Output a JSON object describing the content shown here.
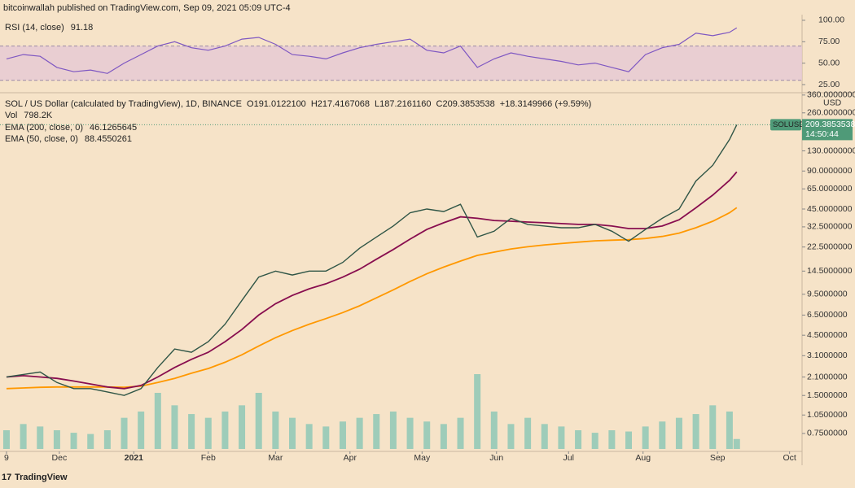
{
  "header": "bitcoinwallah published on TradingView.com, Sep 09, 2021 05:09 UTC-4",
  "footer": "TradingView",
  "chart_data": {
    "type": "line",
    "title": "SOL / US Dollar (calculated by TradingView), 1D, BINANCE",
    "ohlc": [
      "O191.0122100",
      "H217.4167068",
      "L187.2161160",
      "C209.3853538",
      "+18.3149966 (+9.59%)"
    ],
    "symbol": "SOLUSD",
    "countdown": "14:50:44",
    "currency": "USD",
    "log_scale": true,
    "color": "#2f5546",
    "x": [
      0,
      7,
      14,
      21,
      28,
      35,
      42,
      49,
      56,
      63,
      70,
      77,
      84,
      91,
      98,
      105,
      112,
      119,
      126,
      133,
      140,
      147,
      154,
      161,
      168,
      175,
      182,
      189,
      196,
      203,
      210,
      217,
      224,
      231,
      238,
      245,
      252,
      259,
      266,
      273,
      280,
      287,
      294,
      301,
      304
    ],
    "values": [
      2.1,
      2.2,
      2.3,
      1.9,
      1.7,
      1.7,
      1.6,
      1.5,
      1.7,
      2.5,
      3.5,
      3.3,
      4.0,
      5.5,
      8.5,
      13,
      14.5,
      13.5,
      14.5,
      14.5,
      17,
      22,
      27,
      33,
      42,
      45,
      43,
      49,
      27,
      30,
      38,
      34,
      33,
      32,
      32,
      34,
      30,
      25,
      31,
      38,
      45,
      75,
      100,
      160,
      209.3853538
    ],
    "xlim": [
      -2.7,
      331.2
    ],
    "xticks": [
      {
        "value": 0,
        "label": "9"
      },
      {
        "value": 22,
        "label": "Dec"
      },
      {
        "value": 53,
        "label": "2021"
      },
      {
        "value": 84,
        "label": "Feb"
      },
      {
        "value": 112,
        "label": "Mar"
      },
      {
        "value": 143,
        "label": "Apr"
      },
      {
        "value": 173,
        "label": "May"
      },
      {
        "value": 204,
        "label": "Jun"
      },
      {
        "value": 234,
        "label": "Jul"
      },
      {
        "value": 265,
        "label": "Aug"
      },
      {
        "value": 296,
        "label": "Sep"
      },
      {
        "value": 326,
        "label": "Oct"
      }
    ],
    "ylim": [
      0.42,
      370
    ],
    "yticks": [
      {
        "value": 360,
        "label": "360.0000000"
      },
      {
        "value": 260,
        "label": "260.0000000"
      },
      {
        "value": 130,
        "label": "130.0000000"
      },
      {
        "value": 90,
        "label": "90.0000000"
      },
      {
        "value": 65,
        "label": "65.0000000"
      },
      {
        "value": 45,
        "label": "45.0000000"
      },
      {
        "value": 32.5,
        "label": "32.5000000"
      },
      {
        "value": 22.5,
        "label": "22.5000000"
      },
      {
        "value": 14.5,
        "label": "14.5000000"
      },
      {
        "value": 9.5,
        "label": "9.5000000"
      },
      {
        "value": 6.5,
        "label": "6.5000000"
      },
      {
        "value": 4.5,
        "label": "4.5000000"
      },
      {
        "value": 3.1,
        "label": "3.1000000"
      },
      {
        "value": 2.1,
        "label": "2.1000000"
      },
      {
        "value": 1.5,
        "label": "1.5000000"
      },
      {
        "value": 1.05,
        "label": "1.0500000"
      },
      {
        "value": 0.75,
        "label": "0.7500000"
      }
    ],
    "series": [
      {
        "name": "EMA (200, close, 0)",
        "color": "#ff9800",
        "values": [
          1.7,
          1.72,
          1.74,
          1.75,
          1.75,
          1.75,
          1.75,
          1.74,
          1.78,
          1.9,
          2.05,
          2.25,
          2.45,
          2.75,
          3.15,
          3.7,
          4.3,
          4.9,
          5.5,
          6.1,
          6.8,
          7.7,
          8.9,
          10.3,
          12,
          13.8,
          15.6,
          17.4,
          19.3,
          20.5,
          21.7,
          22.6,
          23.4,
          24,
          24.6,
          25.2,
          25.5,
          25.7,
          26.3,
          27.3,
          29,
          32,
          36,
          42,
          46.1265645
        ]
      },
      {
        "name": "EMA (50, close, 0)",
        "color": "#880e4f",
        "values": [
          2.1,
          2.15,
          2.1,
          2.05,
          1.95,
          1.85,
          1.75,
          1.7,
          1.8,
          2.1,
          2.5,
          2.9,
          3.3,
          4.0,
          5.0,
          6.5,
          8,
          9.3,
          10.5,
          11.5,
          13,
          15,
          18,
          21.5,
          26,
          31,
          35,
          39,
          38,
          36.5,
          36,
          35.5,
          35,
          34.5,
          34,
          34,
          33,
          31.5,
          31.5,
          33,
          37,
          46,
          58,
          76,
          88.4550261
        ]
      },
      {
        "name": "Vol",
        "color": "#8ec8b6",
        "value_label": "798.2K",
        "values": [
          1500,
          2000,
          1800,
          1500,
          1300,
          1200,
          1500,
          2500,
          3000,
          4500,
          3500,
          2800,
          2500,
          3000,
          3500,
          4500,
          3000,
          2500,
          2000,
          1800,
          2200,
          2500,
          2800,
          3000,
          2500,
          2200,
          2000,
          2500,
          6000,
          3000,
          2000,
          2500,
          2000,
          1800,
          1500,
          1300,
          1500,
          1400,
          1800,
          2200,
          2500,
          2800,
          3500,
          3000,
          798.2
        ]
      }
    ],
    "rsi": {
      "name": "RSI (14, close)",
      "color": "#7e57c2",
      "values": [
        55,
        60,
        58,
        45,
        40,
        42,
        38,
        50,
        60,
        70,
        75,
        68,
        65,
        70,
        78,
        80,
        72,
        60,
        58,
        55,
        62,
        68,
        72,
        75,
        78,
        65,
        62,
        70,
        45,
        55,
        62,
        58,
        55,
        52,
        48,
        50,
        45,
        40,
        60,
        68,
        72,
        85,
        82,
        86,
        91.18
      ],
      "ylim": [
        17.4,
        106.6
      ],
      "yticks": [
        {
          "value": 100,
          "label": "100.00"
        },
        {
          "value": 75,
          "label": "75.00"
        },
        {
          "value": 50,
          "label": "50.00"
        },
        {
          "value": 25,
          "label": "25.00"
        }
      ],
      "band": [
        30,
        70
      ],
      "band_color": "#e6c8d4"
    }
  }
}
